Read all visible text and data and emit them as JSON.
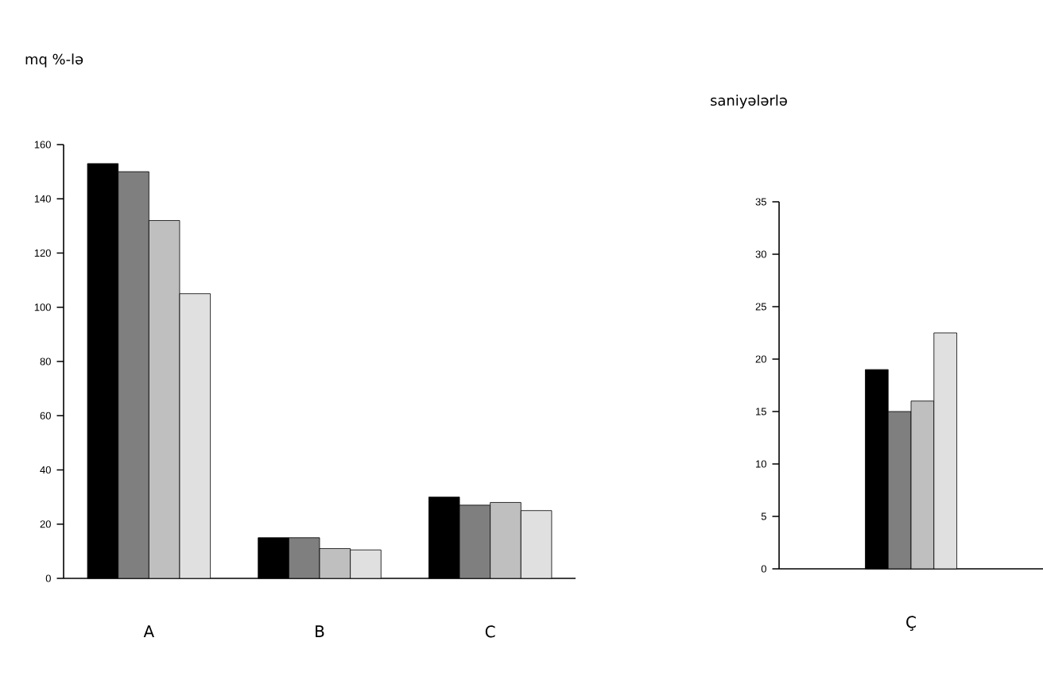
{
  "chart_data": [
    {
      "type": "bar",
      "ylabel": "mq %-lə",
      "categories": [
        "A",
        "B",
        "C"
      ],
      "ylim": [
        0,
        160
      ],
      "yticks": [
        0,
        20,
        40,
        60,
        80,
        100,
        120,
        140,
        160
      ],
      "series": [
        {
          "color": "#000000",
          "values": [
            153,
            15,
            30
          ]
        },
        {
          "color": "#7f7f7f",
          "values": [
            150,
            15,
            27
          ]
        },
        {
          "color": "#bfbfbf",
          "values": [
            132,
            11,
            28
          ]
        },
        {
          "color": "#e0e0e0",
          "values": [
            105,
            10.5,
            25
          ]
        }
      ]
    },
    {
      "type": "bar",
      "ylabel": "saniyələrlə",
      "categories": [
        "Ç"
      ],
      "ylim": [
        0,
        35
      ],
      "yticks": [
        0,
        5,
        10,
        15,
        20,
        25,
        30,
        35
      ],
      "series": [
        {
          "color": "#000000",
          "values": [
            19
          ]
        },
        {
          "color": "#7f7f7f",
          "values": [
            15
          ]
        },
        {
          "color": "#bfbfbf",
          "values": [
            16
          ]
        },
        {
          "color": "#e0e0e0",
          "values": [
            22.5
          ]
        }
      ]
    }
  ]
}
